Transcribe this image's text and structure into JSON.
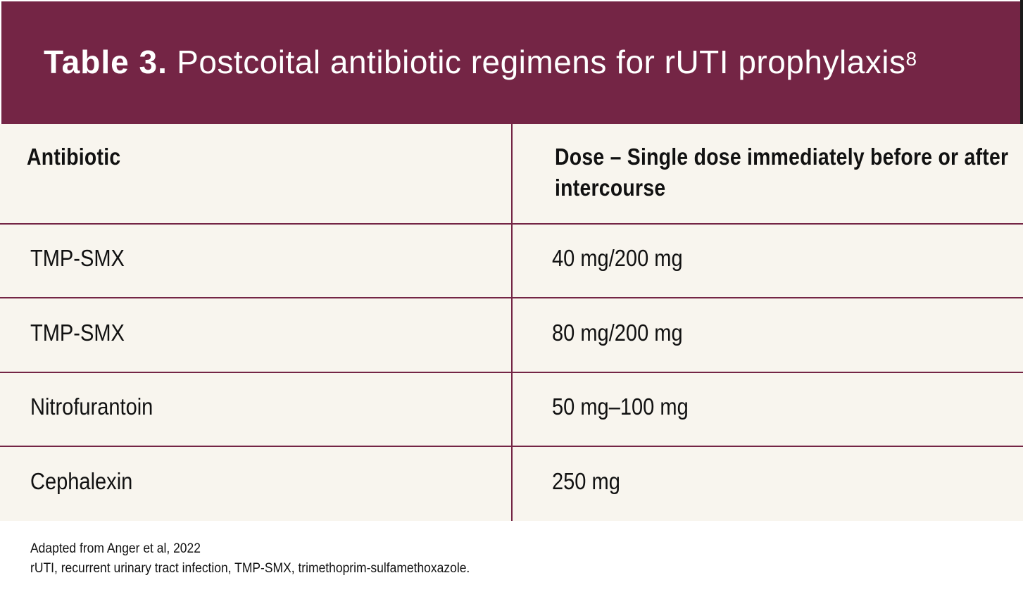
{
  "header": {
    "title_label": "Table 3.",
    "title_text": "Postcoital antibiotic regimens for rUTI prophylaxis",
    "title_ref": "8",
    "bg_color": "#742545"
  },
  "table": {
    "columns": [
      "Antibiotic",
      "Dose – Single dose immediately before or after intercourse"
    ],
    "rows": [
      {
        "antibiotic": "TMP-SMX",
        "dose": "40 mg/200 mg"
      },
      {
        "antibiotic": "TMP-SMX",
        "dose": "80 mg/200 mg"
      },
      {
        "antibiotic": "Nitrofurantoin",
        "dose": "50 mg–100 mg"
      },
      {
        "antibiotic": "Cephalexin",
        "dose": "250 mg"
      }
    ],
    "row_bg_color": "#f8f5ee",
    "rule_color": "#742545"
  },
  "footnotes": {
    "source": "Adapted from Anger et al, 2022",
    "abbreviations": "rUTI, recurrent urinary tract infection, TMP-SMX, trimethoprim-sulfamethoxazole."
  }
}
